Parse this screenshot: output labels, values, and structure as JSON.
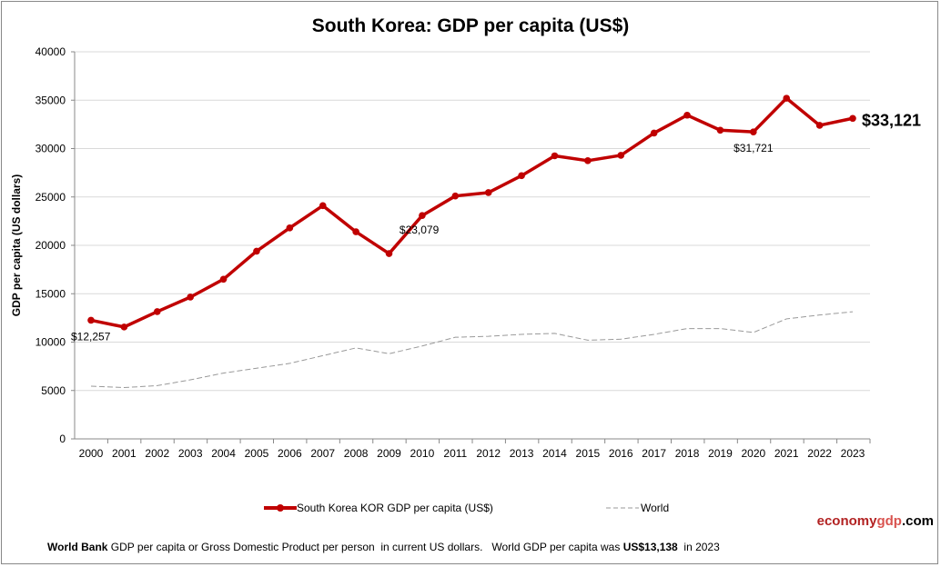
{
  "chart_data": {
    "type": "line",
    "title": "South Korea: GDP per capita (US$)",
    "xlabel": "",
    "ylabel": "GDP per capita (US dollars)",
    "ylim": [
      0,
      40000
    ],
    "yticks": [
      0,
      5000,
      10000,
      15000,
      20000,
      25000,
      30000,
      35000,
      40000
    ],
    "grid": true,
    "legend_position": "bottom",
    "x": [
      2000,
      2001,
      2002,
      2003,
      2004,
      2005,
      2006,
      2007,
      2008,
      2009,
      2010,
      2011,
      2012,
      2013,
      2014,
      2015,
      2016,
      2017,
      2018,
      2019,
      2020,
      2021,
      2022,
      2023
    ],
    "series": [
      {
        "name": "South Korea KOR GDP per capita (US$)",
        "color": "#c00000",
        "style": "solid-markers",
        "values": [
          12257,
          11561,
          13150,
          14650,
          16500,
          19400,
          21800,
          24100,
          21400,
          19150,
          23079,
          25100,
          25450,
          27200,
          29250,
          28750,
          29300,
          31600,
          33450,
          31900,
          31721,
          35200,
          32400,
          33121
        ]
      },
      {
        "name": "World",
        "color": "#999999",
        "style": "dashed",
        "values": [
          5450,
          5300,
          5500,
          6100,
          6800,
          7300,
          7800,
          8600,
          9400,
          8800,
          9600,
          10500,
          10600,
          10800,
          10900,
          10200,
          10300,
          10800,
          11400,
          11400,
          11000,
          12400,
          12800,
          13138
        ]
      }
    ],
    "annotations": [
      {
        "x": 2000,
        "text": "$12,257"
      },
      {
        "x": 2010,
        "text": "$23,079"
      },
      {
        "x": 2020,
        "text": "$31,721"
      },
      {
        "x": 2023,
        "text": "$33,121"
      }
    ]
  },
  "legend": {
    "korea": "South Korea KOR GDP per capita (US$)",
    "world": "World"
  },
  "logo": {
    "part1": "economy",
    "part2": "gdp",
    "part3": ".com"
  },
  "footer": {
    "bold1": "World Bank",
    "text1": " GDP per capita or Gross Domestic Product per person  in current US dollars.   World GDP per capita was ",
    "bold2": "US$13,138",
    "text2": "  in 2023"
  }
}
